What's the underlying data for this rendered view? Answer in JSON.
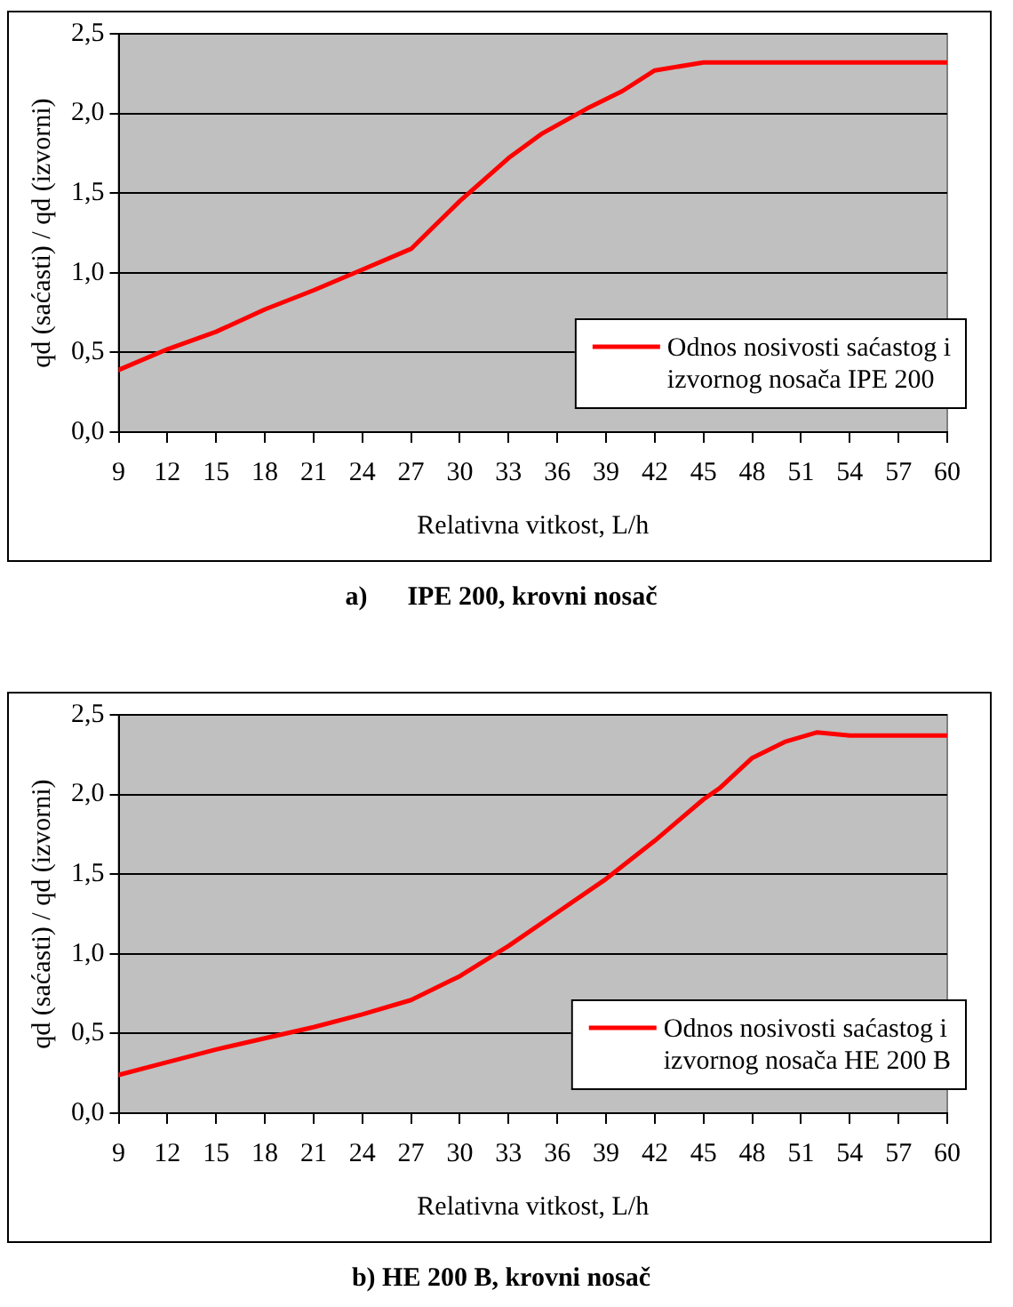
{
  "chart_data": [
    {
      "type": "line",
      "title": "a)      IPE 200, krovni nosač",
      "xlabel": "Relativna vitkost, L/h",
      "ylabel": "qd (saćasti) / qd (izvorni)",
      "series": [
        {
          "name": "Odnos nosivosti saćastog i izvornog nosača IPE 200",
          "color": "#ff0000",
          "x": [
            9,
            12,
            15,
            18,
            21,
            24,
            27,
            28.5,
            30,
            33,
            35,
            38,
            40,
            42,
            45,
            60
          ],
          "values": [
            0.39,
            0.52,
            0.63,
            0.77,
            0.89,
            1.02,
            1.15,
            1.3,
            1.45,
            1.72,
            1.87,
            2.04,
            2.14,
            2.27,
            2.32,
            2.32
          ]
        }
      ],
      "xlim": [
        9,
        60
      ],
      "xticks": [
        9,
        12,
        15,
        18,
        21,
        24,
        27,
        30,
        33,
        36,
        39,
        42,
        45,
        48,
        51,
        54,
        57,
        60
      ],
      "ylim": [
        0,
        2.5
      ],
      "yticks": [
        {
          "value": 0,
          "label": "0,0"
        },
        {
          "value": 0.5,
          "label": "0,5"
        },
        {
          "value": 1,
          "label": "1,0"
        },
        {
          "value": 1.5,
          "label": "1,5"
        },
        {
          "value": 2,
          "label": "2,0"
        },
        {
          "value": 2.5,
          "label": "2,5"
        }
      ],
      "grid": "y",
      "legend": "bottom right",
      "marker": "none",
      "line_style": "solid"
    },
    {
      "type": "line",
      "title": "b) HE 200 B, krovni nosač",
      "xlabel": "Relativna vitkost, L/h",
      "ylabel": "qd (saćasti) / qd (izvorni)",
      "series": [
        {
          "name": "Odnos nosivosti saćastog i izvornog nosača HE 200 B",
          "color": "#ff0000",
          "x": [
            9,
            12,
            15,
            18,
            21,
            24,
            27,
            30,
            33,
            36,
            39,
            42,
            45,
            46,
            48,
            50,
            52,
            54,
            60
          ],
          "values": [
            0.24,
            0.32,
            0.4,
            0.47,
            0.54,
            0.62,
            0.71,
            0.86,
            1.05,
            1.26,
            1.47,
            1.71,
            1.97,
            2.04,
            2.23,
            2.33,
            2.39,
            2.37,
            2.37
          ]
        }
      ],
      "xlim": [
        9,
        60
      ],
      "xticks": [
        9,
        12,
        15,
        18,
        21,
        24,
        27,
        30,
        33,
        36,
        39,
        42,
        45,
        48,
        51,
        54,
        57,
        60
      ],
      "ylim": [
        0,
        2.5
      ],
      "yticks": [
        {
          "value": 0,
          "label": "0,0"
        },
        {
          "value": 0.5,
          "label": "0,5"
        },
        {
          "value": 1,
          "label": "1,0"
        },
        {
          "value": 1.5,
          "label": "1,5"
        },
        {
          "value": 2,
          "label": "2,0"
        },
        {
          "value": 2.5,
          "label": "2,5"
        }
      ],
      "grid": "y",
      "legend": "bottom right",
      "marker": "none",
      "line_style": "solid"
    }
  ]
}
